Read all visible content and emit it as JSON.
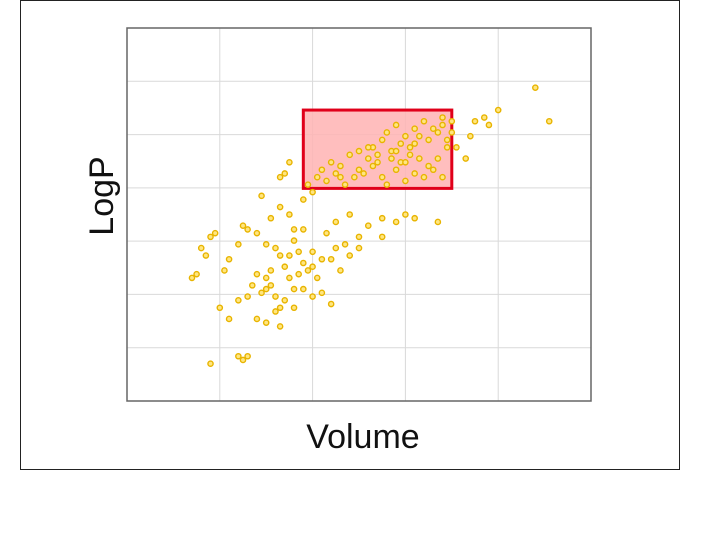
{
  "chart_data": {
    "type": "scatter",
    "title": "",
    "xlabel": "Volume",
    "ylabel": "LogP",
    "xlim": [
      0,
      100
    ],
    "ylim": [
      0,
      100
    ],
    "grid": true,
    "tick_labels": false,
    "point_color": "#e8b400",
    "point_edge": "#c08a00",
    "highlight_region": {
      "x": [
        38,
        70
      ],
      "y": [
        57,
        78
      ],
      "fill": "#ffb3b3",
      "stroke": "#e0001a"
    },
    "points": [
      [
        38,
        46
      ],
      [
        40,
        40
      ],
      [
        43,
        45
      ],
      [
        45,
        48
      ],
      [
        47,
        42
      ],
      [
        48,
        39
      ],
      [
        50,
        44
      ],
      [
        52,
        47
      ],
      [
        55,
        49
      ],
      [
        58,
        48
      ],
      [
        60,
        50
      ],
      [
        62,
        49
      ],
      [
        67,
        48
      ],
      [
        39,
        58
      ],
      [
        41,
        60
      ],
      [
        43,
        59
      ],
      [
        45,
        61
      ],
      [
        47,
        58
      ],
      [
        49,
        60
      ],
      [
        51,
        61
      ],
      [
        53,
        63
      ],
      [
        55,
        60
      ],
      [
        56,
        58
      ],
      [
        58,
        62
      ],
      [
        60,
        59
      ],
      [
        62,
        61
      ],
      [
        64,
        60
      ],
      [
        66,
        62
      ],
      [
        68,
        60
      ],
      [
        42,
        62
      ],
      [
        44,
        64
      ],
      [
        46,
        63
      ],
      [
        50,
        62
      ],
      [
        52,
        65
      ],
      [
        54,
        64
      ],
      [
        57,
        65
      ],
      [
        59,
        64
      ],
      [
        61,
        66
      ],
      [
        63,
        65
      ],
      [
        65,
        63
      ],
      [
        67,
        65
      ],
      [
        48,
        66
      ],
      [
        50,
        67
      ],
      [
        53,
        68
      ],
      [
        55,
        70
      ],
      [
        57,
        67
      ],
      [
        59,
        69
      ],
      [
        61,
        68
      ],
      [
        63,
        71
      ],
      [
        65,
        70
      ],
      [
        67,
        72
      ],
      [
        69,
        68
      ],
      [
        56,
        72
      ],
      [
        58,
        74
      ],
      [
        60,
        71
      ],
      [
        62,
        73
      ],
      [
        64,
        75
      ],
      [
        66,
        73
      ],
      [
        68,
        74
      ],
      [
        70,
        75
      ],
      [
        52,
        68
      ],
      [
        54,
        66
      ],
      [
        46,
        60
      ],
      [
        40,
        56
      ],
      [
        38,
        54
      ],
      [
        70,
        72
      ],
      [
        71,
        68
      ],
      [
        73,
        65
      ],
      [
        68,
        76
      ],
      [
        69,
        70
      ],
      [
        58,
        67
      ],
      [
        60,
        64
      ],
      [
        62,
        69
      ],
      [
        75,
        75
      ],
      [
        77,
        76
      ],
      [
        78,
        74
      ],
      [
        80,
        78
      ],
      [
        74,
        71
      ],
      [
        88,
        84
      ],
      [
        91,
        75
      ],
      [
        14,
        33
      ],
      [
        15,
        34
      ],
      [
        16,
        41
      ],
      [
        17,
        39
      ],
      [
        18,
        44
      ],
      [
        19,
        45
      ],
      [
        21,
        35
      ],
      [
        22,
        38
      ],
      [
        24,
        42
      ],
      [
        25,
        47
      ],
      [
        26,
        46
      ],
      [
        28,
        45
      ],
      [
        30,
        42
      ],
      [
        32,
        41
      ],
      [
        33,
        39
      ],
      [
        34,
        36
      ],
      [
        35,
        39
      ],
      [
        36,
        43
      ],
      [
        37,
        40
      ],
      [
        35,
        33
      ],
      [
        36,
        30
      ],
      [
        37,
        34
      ],
      [
        38,
        30
      ],
      [
        40,
        28
      ],
      [
        42,
        29
      ],
      [
        44,
        26
      ],
      [
        33,
        25
      ],
      [
        33,
        20
      ],
      [
        34,
        27
      ],
      [
        36,
        25
      ],
      [
        28,
        22
      ],
      [
        30,
        21
      ],
      [
        32,
        24
      ],
      [
        39,
        35
      ],
      [
        40,
        36
      ],
      [
        41,
        33
      ],
      [
        20,
        25
      ],
      [
        22,
        22
      ],
      [
        24,
        27
      ],
      [
        26,
        28
      ],
      [
        27,
        31
      ],
      [
        28,
        34
      ],
      [
        30,
        33
      ],
      [
        31,
        35
      ],
      [
        32,
        28
      ],
      [
        18,
        10
      ],
      [
        24,
        12
      ],
      [
        25,
        11
      ],
      [
        26,
        12
      ],
      [
        30,
        30
      ],
      [
        31,
        31
      ],
      [
        29,
        29
      ],
      [
        44,
        38
      ],
      [
        46,
        35
      ],
      [
        50,
        41
      ],
      [
        55,
        44
      ],
      [
        48,
        50
      ],
      [
        45,
        41
      ],
      [
        42,
        38
      ],
      [
        38,
        37
      ],
      [
        36,
        46
      ],
      [
        35,
        50
      ],
      [
        33,
        52
      ],
      [
        31,
        49
      ],
      [
        29,
        55
      ],
      [
        33,
        60
      ],
      [
        34,
        61
      ],
      [
        35,
        64
      ]
    ]
  }
}
